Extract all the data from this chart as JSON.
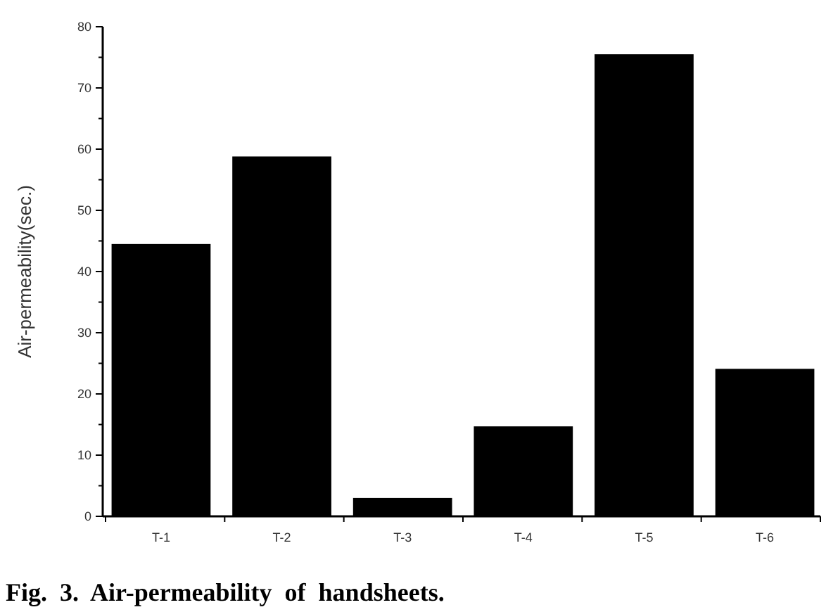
{
  "chart_data": {
    "type": "bar",
    "title": "Fig.  3.  Air-permeability  of  handsheets.",
    "ylabel": "Air-permeability(sec.)",
    "categories": [
      "T-1",
      "T-2",
      "T-3",
      "T-4",
      "T-5",
      "T-6"
    ],
    "values": [
      44.5,
      58.8,
      3,
      14.7,
      75.5,
      24.1
    ],
    "color": "#000000",
    "ylim": [
      0,
      80
    ],
    "yticks": [
      0,
      10,
      20,
      30,
      40,
      50,
      60,
      70,
      80
    ],
    "grid": false
  }
}
